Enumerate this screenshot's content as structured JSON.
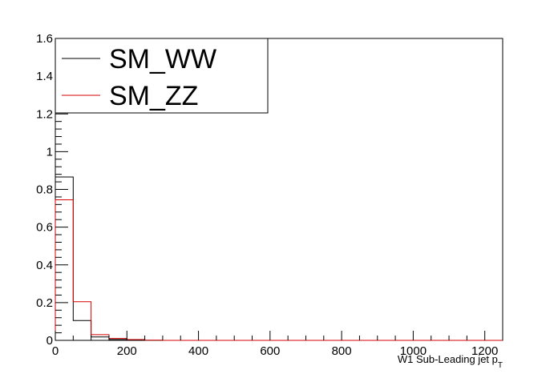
{
  "chart_data": {
    "type": "histogram",
    "xlabel": "W1 Sub-Leading jet p",
    "xlabel_subscript": "T",
    "xlim": [
      0,
      1250
    ],
    "ylim": [
      0,
      1.6
    ],
    "x_ticks": [
      0,
      200,
      400,
      600,
      800,
      1000,
      1200
    ],
    "y_ticks": [
      0,
      0.2,
      0.4,
      0.6,
      0.8,
      1,
      1.2,
      1.4,
      1.6
    ],
    "bin_edges": [
      0,
      50,
      100,
      150,
      200,
      250,
      300,
      350,
      400,
      450,
      500,
      550,
      600,
      650,
      700,
      750,
      800,
      850,
      900,
      950,
      1000,
      1050,
      1100,
      1150,
      1200,
      1250
    ],
    "series": [
      {
        "name": "SM_WW",
        "color": "#000000",
        "values": [
          0.866,
          0.105,
          0.018,
          0.005,
          0.002,
          0,
          0,
          0,
          0,
          0,
          0,
          0,
          0,
          0,
          0,
          0,
          0,
          0,
          0,
          0,
          0,
          0,
          0,
          0,
          0
        ]
      },
      {
        "name": "SM_ZZ",
        "color": "#d40000",
        "values": [
          0.745,
          0.205,
          0.03,
          0.01,
          0.004,
          0.001,
          0,
          0,
          0,
          0,
          0,
          0,
          0,
          0,
          0,
          0,
          0,
          0,
          0,
          0,
          0,
          0,
          0,
          0,
          0
        ]
      }
    ],
    "legend_position": "top-left",
    "grid": false
  }
}
